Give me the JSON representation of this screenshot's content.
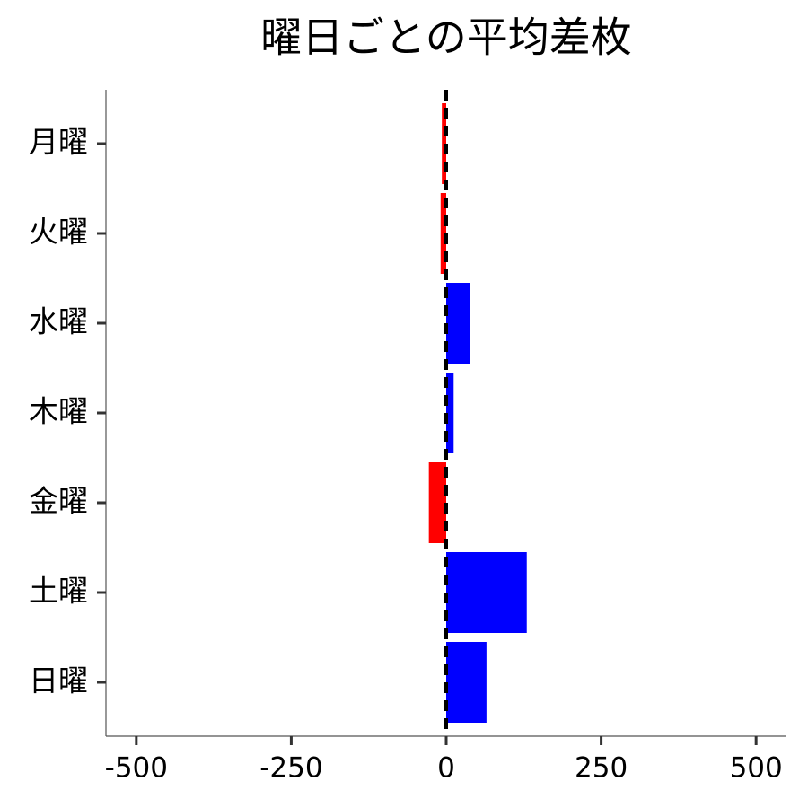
{
  "chart_data": {
    "type": "barh",
    "title": "曜日ごとの平均差枚",
    "categories": [
      "月曜",
      "火曜",
      "水曜",
      "木曜",
      "金曜",
      "土曜",
      "日曜"
    ],
    "values": [
      -7,
      -9,
      39,
      12,
      -28,
      130,
      65
    ],
    "colors": [
      "#ff0000",
      "#ff0000",
      "#0000ff",
      "#0000ff",
      "#ff0000",
      "#0000ff",
      "#0000ff"
    ],
    "xlim": [
      -549,
      549
    ],
    "xticks": [
      -500,
      -250,
      0,
      250,
      500
    ],
    "reference_line": 0,
    "grid": false
  }
}
